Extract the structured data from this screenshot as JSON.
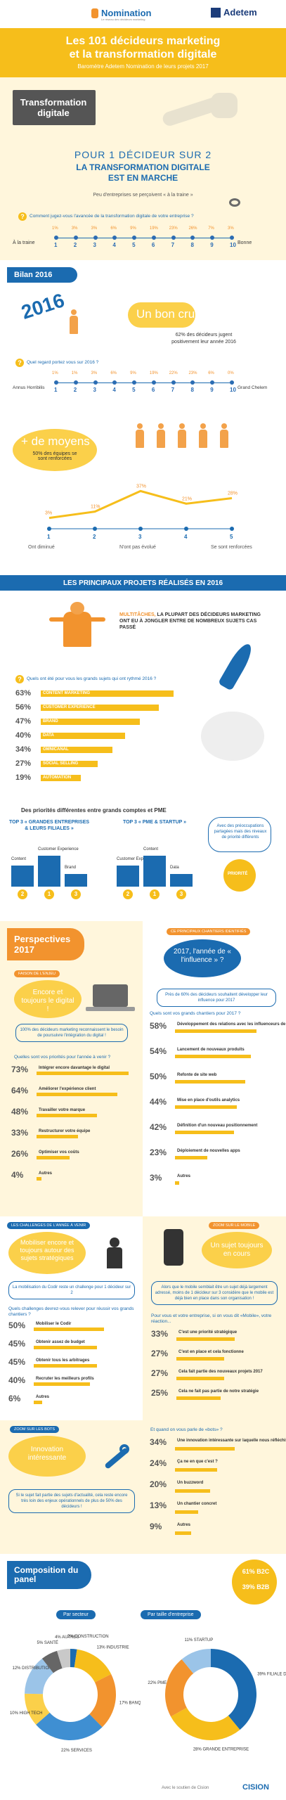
{
  "header": {
    "brand_left": "Nomination",
    "brand_left_tagline": "Le réseau des décideurs marketing",
    "brand_right": "Adetem",
    "title_line1": "Les 101 décideurs marketing",
    "title_line2": "et la transformation digitale",
    "subtitle": "Baromètre Adetem Nomination de leurs projets 2017"
  },
  "transformation": {
    "badge": "Transformation digitale",
    "stat_line1": "POUR 1 DÉCIDEUR SUR 2",
    "stat_line2": "LA TRANSFORMATION DIGITALE",
    "stat_line3": "EST EN MARCHE",
    "note": "Peu d'entreprises se perçoivent « à la traine »",
    "question": "Comment jugez-vous l'avancée de la transformation digitale de votre entreprise ?",
    "scale_left": "À la traine",
    "scale_right": "Bonne",
    "scale": [
      "1",
      "2",
      "3",
      "4",
      "5",
      "6",
      "7",
      "8",
      "9",
      "10"
    ],
    "percents": [
      "1%",
      "3%",
      "3%",
      "6%",
      "9%",
      "19%",
      "23%",
      "26%",
      "7%",
      "3%"
    ]
  },
  "bilan": {
    "title": "Bilan 2016",
    "year": "2016",
    "quote": "Un bon cru",
    "stat": "62% des décideurs jugent positivement leur année 2016",
    "question": "Quel regard portez vous sur 2016 ?",
    "scale_left": "Annus Horribilis",
    "scale_right": "Grand Chelem",
    "scale": [
      "1",
      "2",
      "3",
      "4",
      "5",
      "6",
      "7",
      "8",
      "9",
      "10"
    ],
    "percents": [
      "1%",
      "1%",
      "3%",
      "6%",
      "9%",
      "19%",
      "22%",
      "23%",
      "6%",
      "0%"
    ],
    "means_title": "+ de moyens",
    "means_text": "50% des équipes se sont renforcées",
    "team_percents": [
      "3%",
      "11%",
      "37%",
      "21%",
      "28%"
    ],
    "team_scale": [
      "1",
      "2",
      "3",
      "4",
      "5"
    ],
    "team_left": "Ont diminué",
    "team_mid": "N'ont pas évolué",
    "team_right": "Se sont renforcées"
  },
  "projects": {
    "title": "LES PRINCIPAUX PROJETS RÉALISÉS EN 2016",
    "multitask_label": "MULTITÂCHES,",
    "multitask_text": "LA PLUPART DES DÉCIDEURS MARKETING ONT EU À JONGLER ENTRE DE NOMBREUX SUJETS CAS PASSÉ",
    "question": "Quels ont été pour vous les grands sujets qui ont rythmé 2016 ?",
    "items": [
      {
        "pct": "63%",
        "label": "CONTENT MARKETING",
        "value": 63
      },
      {
        "pct": "56%",
        "label": "CUSTOMER EXPERIENCE",
        "value": 56
      },
      {
        "pct": "47%",
        "label": "BRAND",
        "value": 47
      },
      {
        "pct": "40%",
        "label": "DATA",
        "value": 40
      },
      {
        "pct": "34%",
        "label": "OMNICANAL",
        "value": 34
      },
      {
        "pct": "27%",
        "label": "SOCIAL SELLING",
        "value": 27
      },
      {
        "pct": "19%",
        "label": "AUTOMATION",
        "value": 19
      }
    ],
    "priorities_title": "Des priorités différentes entre grands comptes et PME",
    "top3_big_title": "TOP 3 « GRANDES ENTREPRISES & LEURS FILIALES »",
    "top3_big": [
      "Content",
      "Customer Experience",
      "Brand"
    ],
    "top3_big_ranks": [
      "2",
      "1",
      "3"
    ],
    "top3_pme_title": "TOP 3 « PME & STARTUP »",
    "top3_pme": [
      "Customer Experience",
      "Content",
      "Data"
    ],
    "top3_pme_ranks": [
      "2",
      "1",
      "3"
    ],
    "priorities_note": "Avec des préoccupations partagées mais des niveaux de priorité différents",
    "rocket_label": "PRIORITÉ"
  },
  "perspectives": {
    "title": "Perspectives 2017",
    "digital_head": "FAISON DE L'ENJEU",
    "digital_quote": "Encore et toujours le digital !",
    "digital_note": "100% des décideurs marketing reconnaissent le besoin de poursuivre l'intégration du digital !",
    "influence_head": "CE PRINCIPAUX CHANTIERS IDENTIFIÉS",
    "influence_quote": "2017, l'année de « l'influence » ?",
    "influence_note": "Près de 60% des décideurs souhaitent développer leur influence pour 2017",
    "chantiers_question": "Quels sont vos grands chantiers pour 2017 ?",
    "chantiers": [
      {
        "pct": "58%",
        "label": "Développement des relations avec les influenceurs de votre secteur (journalistes, blogue...)",
        "value": 58
      },
      {
        "pct": "54%",
        "label": "Lancement de nouveaux produits",
        "value": 54
      },
      {
        "pct": "50%",
        "label": "Refonte de site web",
        "value": 50
      },
      {
        "pct": "44%",
        "label": "Mise en place d'outils analytics",
        "value": 44
      },
      {
        "pct": "42%",
        "label": "Définition d'un nouveau positionnement",
        "value": 42
      },
      {
        "pct": "23%",
        "label": "Déploiement de nouvelles apps",
        "value": 23
      },
      {
        "pct": "3%",
        "label": "Autres",
        "value": 3
      }
    ],
    "priorities_question": "Quelles sont vos priorités pour l'année à venir ?",
    "priorities": [
      {
        "pct": "73%",
        "label": "Intégrer encore davantage le digital",
        "value": 73
      },
      {
        "pct": "64%",
        "label": "Améliorer l'expérience client",
        "value": 64
      },
      {
        "pct": "48%",
        "label": "Travailler votre marque",
        "value": 48
      },
      {
        "pct": "33%",
        "label": "Restructurer votre équipe",
        "value": 33
      },
      {
        "pct": "26%",
        "label": "Optimiser vos coûts",
        "value": 26
      },
      {
        "pct": "4%",
        "label": "Autres",
        "value": 4
      }
    ]
  },
  "challenges": {
    "head": "LES CHALLENGES DE L'ANNÉE À VENIR",
    "quote": "Mobiliser encore et toujours autour des sujets stratégiques",
    "note": "La mobilisation du Codir reste un challenge pour 1 décideur sur 2",
    "question": "Quels challenges devrez-vous relever pour réussir vos grands chantiers ?",
    "items": [
      {
        "pct": "50%",
        "label": "Mobiliser le Codir",
        "value": 50
      },
      {
        "pct": "45%",
        "label": "Obtenir assez de budget",
        "value": 45
      },
      {
        "pct": "45%",
        "label": "Obtenir tous les arbitrages",
        "value": 45
      },
      {
        "pct": "40%",
        "label": "Recruter les meilleurs profils",
        "value": 40
      },
      {
        "pct": "6%",
        "label": "Autres",
        "value": 6
      }
    ],
    "mobile_head": "ZOOM SUR LE MOBILE",
    "mobile_quote": "Un sujet toujours en cours",
    "mobile_note": "Alors que le mobile semblait être un sujet déjà largement adressé, moins de 1 décideur sur 3 considère que le mobile est déjà bien en place dans son organisation !",
    "mobile_question": "Pour vous et votre entreprise, si on vous dit «Mobile», votre réaction...",
    "mobile_items": [
      {
        "pct": "33%",
        "label": "C'est une priorité stratégique",
        "value": 33
      },
      {
        "pct": "27%",
        "label": "C'est en place et cela fonctionne",
        "value": 27
      },
      {
        "pct": "27%",
        "label": "Cela fait partie des nouveaux projets 2017",
        "value": 27
      },
      {
        "pct": "25%",
        "label": "Cela ne fait pas partie de notre stratégie",
        "value": 25
      }
    ]
  },
  "innovation": {
    "head": "ZOOM SUR LES BOTS",
    "quote": "Innovation intéressante",
    "note": "Si le sujet fait partie des sujets d'actualité, cela reste encore très loin des enjeux opérationnels de plus de 50% des décideurs !",
    "question": "Et quand on vous parle de «bots» ?",
    "items": [
      {
        "pct": "34%",
        "label": "Une innovation intéressante sur laquelle nous réfléchissons",
        "value": 34
      },
      {
        "pct": "24%",
        "label": "Ça ne en que c'est ?",
        "value": 24
      },
      {
        "pct": "20%",
        "label": "Un buzzword",
        "value": 20
      },
      {
        "pct": "13%",
        "label": "Un chantier concret",
        "value": 13
      },
      {
        "pct": "9%",
        "label": "Autres",
        "value": 9
      }
    ]
  },
  "composition": {
    "title": "Composition du panel",
    "by_sector": "Par secteur",
    "by_size": "Par taille d'entreprise",
    "split": [
      {
        "label": "B2C",
        "pct": "61%"
      },
      {
        "label": "B2B",
        "pct": "39%"
      }
    ],
    "sectors": [
      {
        "label": "CONSTRUCTION",
        "pct": "2%"
      },
      {
        "label": "INDUSTRIE",
        "pct": "13%"
      },
      {
        "label": "BANQUE, FINANCE, ASSURANCE",
        "pct": "17%"
      },
      {
        "label": "SERVICES",
        "pct": "22%"
      },
      {
        "label": "HIGH TECH",
        "pct": "10%"
      },
      {
        "label": "DISTRIBUTION",
        "pct": "12%"
      },
      {
        "label": "SANTÉ",
        "pct": "5%"
      },
      {
        "label": "AUTRES",
        "pct": "4%"
      }
    ],
    "sizes": [
      {
        "label": "FILIALE D'UN GROUPE",
        "pct": "39%"
      },
      {
        "label": "GRANDE ENTREPRISE",
        "pct": "28%"
      },
      {
        "label": "PME",
        "pct": "22%"
      },
      {
        "label": "STARTUP",
        "pct": "11%"
      }
    ],
    "footer": "Avec le soutien de Cision",
    "footer_brand": "CISION"
  },
  "colors": {
    "yellow": "#f6be1b",
    "blue": "#1b6bb0",
    "orange": "#f2932e",
    "light": "#fff6dc"
  }
}
